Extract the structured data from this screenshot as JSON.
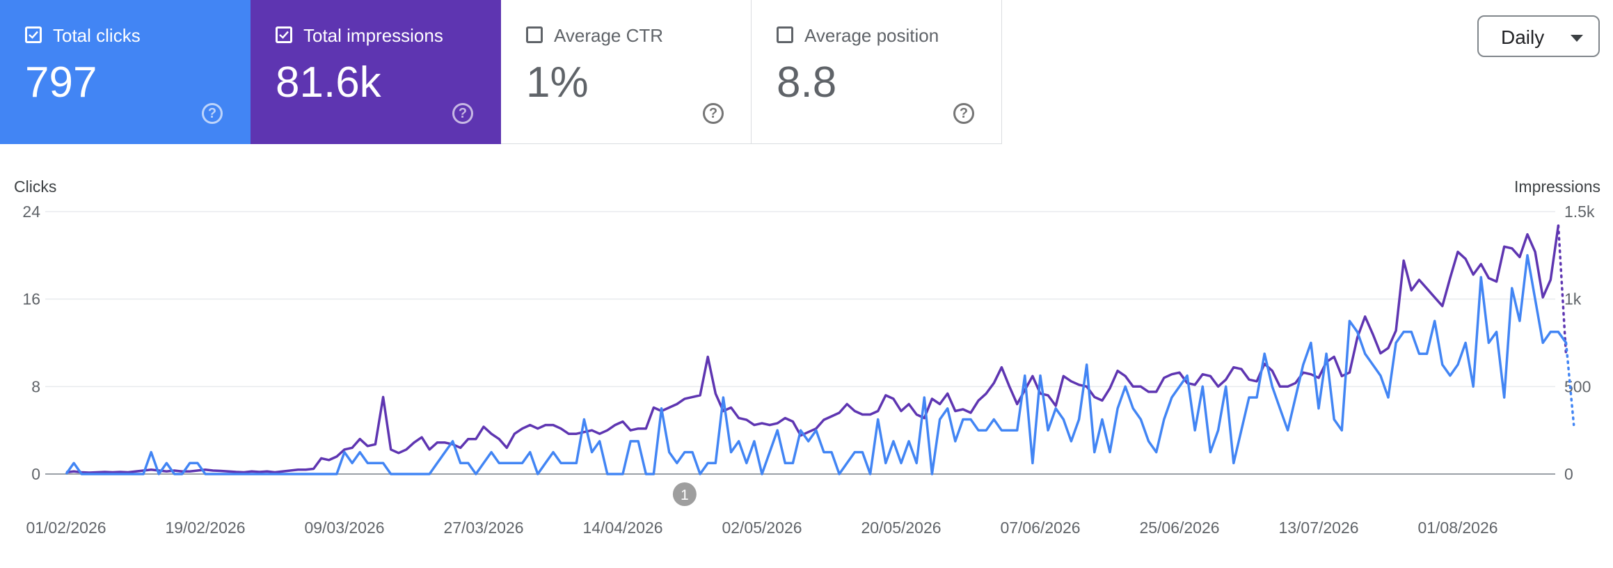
{
  "metrics": [
    {
      "label": "Total clicks",
      "value": "797",
      "checked": true,
      "color": "#4285f4"
    },
    {
      "label": "Total impressions",
      "value": "81.6k",
      "checked": true,
      "color": "#5e35b1"
    },
    {
      "label": "Average CTR",
      "value": "1%",
      "checked": false,
      "color": "#ffffff"
    },
    {
      "label": "Average position",
      "value": "8.8",
      "checked": false,
      "color": "#ffffff"
    }
  ],
  "help_icon": "help-circle-icon",
  "granularity": {
    "selected": "Daily",
    "icon": "arrow-drop-down-icon"
  },
  "chart_data": {
    "type": "line",
    "left_axis_title": "Clicks",
    "right_axis_title": "Impressions",
    "left_ticks": [
      "0",
      "8",
      "16",
      "24"
    ],
    "right_ticks": [
      "0",
      "500",
      "1k",
      "1.5k"
    ],
    "ylim_left": [
      0,
      24
    ],
    "ylim_right": [
      0,
      1500
    ],
    "x_tick_labels": [
      "01/02/2026",
      "19/02/2026",
      "09/03/2026",
      "27/03/2026",
      "14/04/2026",
      "02/05/2026",
      "20/05/2026",
      "07/06/2026",
      "25/06/2026",
      "13/07/2026",
      "01/08/2026"
    ],
    "start_date": "01/02/2026",
    "annotation": {
      "label": "1",
      "date": "22/04/2026"
    },
    "grid": true,
    "last_point_dotted": true,
    "series": [
      {
        "axis": "left",
        "color": "#4285f4",
        "values": [
          0,
          1,
          0,
          0,
          0,
          0,
          0,
          0,
          0,
          0,
          0,
          2,
          0,
          1,
          0,
          0,
          1,
          1,
          0,
          0,
          0,
          0,
          0,
          0,
          0,
          0,
          0,
          0,
          0,
          0,
          0,
          0,
          0,
          0,
          0,
          0,
          2,
          1,
          2,
          1,
          1,
          1,
          0,
          0,
          0,
          0,
          0,
          0,
          1,
          2,
          3,
          1,
          1,
          0,
          1,
          2,
          1,
          1,
          1,
          1,
          2,
          0,
          1,
          2,
          1,
          1,
          1,
          5,
          2,
          3,
          0,
          0,
          0,
          3,
          3,
          0,
          0,
          6,
          2,
          1,
          2,
          2,
          0,
          1,
          1,
          7,
          2,
          3,
          1,
          3,
          0,
          2,
          4,
          1,
          1,
          4,
          3,
          4,
          2,
          2,
          0,
          1,
          2,
          2,
          0,
          5,
          1,
          3,
          1,
          3,
          1,
          7,
          0,
          5,
          6,
          3,
          5,
          5,
          4,
          4,
          5,
          4,
          4,
          4,
          9,
          1,
          9,
          4,
          6,
          5,
          3,
          5,
          10,
          2,
          5,
          2,
          6,
          8,
          6,
          5,
          3,
          2,
          5,
          7,
          8,
          9,
          4,
          8,
          2,
          4,
          8,
          1,
          4,
          7,
          7,
          11,
          8,
          6,
          4,
          7,
          10,
          12,
          6,
          11,
          5,
          4,
          14,
          13,
          11,
          10,
          9,
          7,
          12,
          13,
          13,
          11,
          11,
          14,
          10,
          9,
          10,
          12,
          8,
          18,
          12,
          13,
          7,
          17,
          14,
          20,
          16,
          12,
          13,
          13,
          12,
          4.5
        ]
      },
      {
        "axis": "right",
        "color": "#5e35b1",
        "values": [
          10,
          15,
          10,
          8,
          10,
          12,
          10,
          12,
          10,
          15,
          20,
          25,
          20,
          15,
          20,
          15,
          15,
          20,
          25,
          20,
          18,
          15,
          12,
          10,
          15,
          12,
          15,
          10,
          15,
          20,
          25,
          25,
          30,
          90,
          80,
          100,
          140,
          150,
          200,
          160,
          170,
          440,
          140,
          120,
          140,
          180,
          210,
          140,
          180,
          180,
          170,
          150,
          200,
          200,
          270,
          230,
          200,
          150,
          230,
          260,
          280,
          260,
          280,
          280,
          260,
          230,
          230,
          240,
          250,
          230,
          250,
          280,
          300,
          250,
          260,
          260,
          380,
          360,
          380,
          400,
          430,
          440,
          450,
          670,
          460,
          360,
          380,
          320,
          310,
          280,
          290,
          280,
          290,
          320,
          300,
          220,
          240,
          260,
          310,
          330,
          350,
          400,
          360,
          340,
          340,
          360,
          450,
          430,
          360,
          400,
          340,
          320,
          430,
          400,
          460,
          360,
          370,
          350,
          420,
          460,
          520,
          610,
          500,
          400,
          480,
          560,
          460,
          450,
          390,
          560,
          530,
          510,
          500,
          440,
          420,
          490,
          590,
          560,
          500,
          500,
          470,
          470,
          550,
          570,
          580,
          520,
          510,
          570,
          560,
          500,
          540,
          610,
          600,
          540,
          530,
          630,
          590,
          500,
          500,
          520,
          580,
          570,
          550,
          640,
          670,
          560,
          580,
          780,
          900,
          800,
          690,
          720,
          820,
          1220,
          1050,
          1110,
          1060,
          1010,
          960,
          1120,
          1270,
          1230,
          1140,
          1200,
          1120,
          1100,
          1300,
          1290,
          1240,
          1370,
          1270,
          1010,
          1110,
          1420,
          680
        ]
      }
    ]
  }
}
